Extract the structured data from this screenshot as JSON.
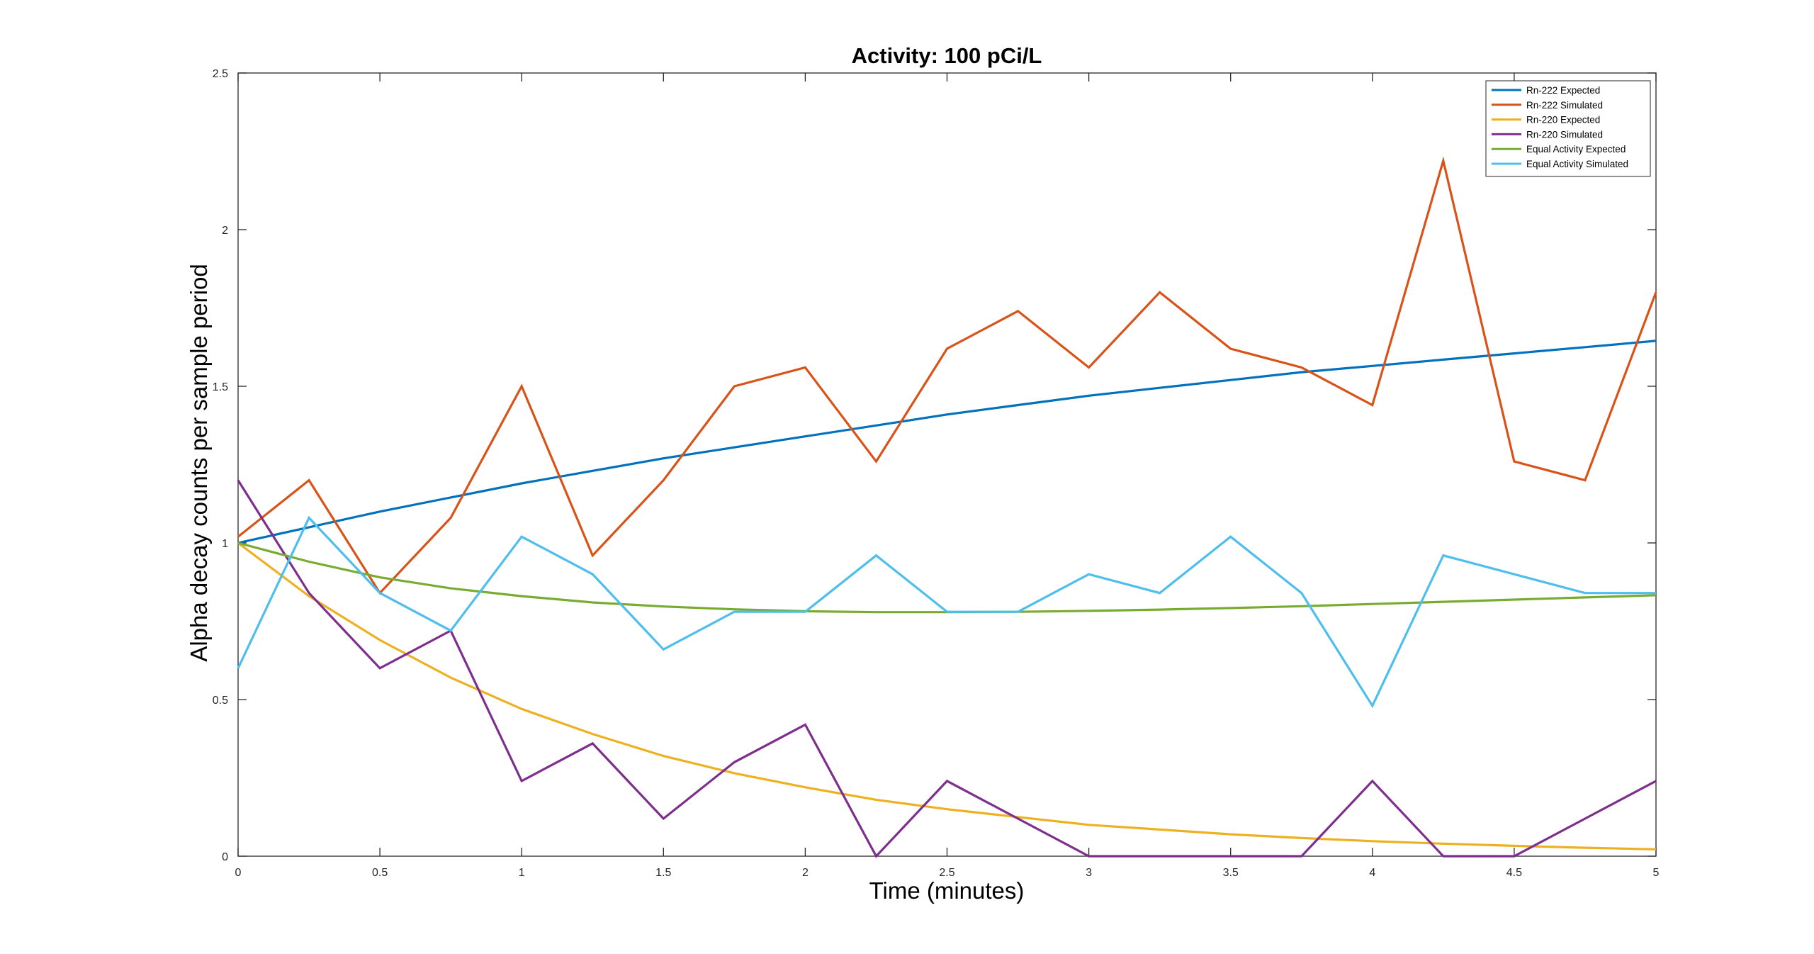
{
  "chart_data": {
    "type": "line",
    "title": "Activity: 100 pCi/L",
    "xlabel": "Time (minutes)",
    "ylabel": "Alpha decay counts per sample period",
    "xlim": [
      0,
      5
    ],
    "ylim": [
      0,
      2.5
    ],
    "xticks": [
      "0",
      "0.5",
      "1",
      "1.5",
      "2",
      "2.5",
      "3",
      "3.5",
      "4",
      "4.5",
      "5"
    ],
    "yticks": [
      "0",
      "0.5",
      "1",
      "1.5",
      "2",
      "2.5"
    ],
    "grid": false,
    "legend_position": "top-right",
    "x": [
      0,
      0.25,
      0.5,
      0.75,
      1,
      1.25,
      1.5,
      1.75,
      2,
      2.25,
      2.5,
      2.75,
      3,
      3.25,
      3.5,
      3.75,
      4,
      4.25,
      4.5,
      4.75,
      5
    ],
    "series": [
      {
        "name": "Rn-222 Expected",
        "color": "#0072BD",
        "values": [
          1.0,
          1.05,
          1.1,
          1.145,
          1.19,
          1.23,
          1.27,
          1.305,
          1.34,
          1.375,
          1.41,
          1.44,
          1.47,
          1.495,
          1.52,
          1.545,
          1.565,
          1.585,
          1.605,
          1.625,
          1.645
        ]
      },
      {
        "name": "Rn-222 Simulated",
        "color": "#D95319",
        "values": [
          1.02,
          1.2,
          0.84,
          1.08,
          1.5,
          0.96,
          1.2,
          1.5,
          1.56,
          1.26,
          1.62,
          1.74,
          1.56,
          1.8,
          1.62,
          1.56,
          1.44,
          2.22,
          1.26,
          1.2,
          1.8
        ]
      },
      {
        "name": "Rn-220 Expected",
        "color": "#EDB120",
        "values": [
          1.0,
          0.83,
          0.69,
          0.57,
          0.47,
          0.39,
          0.32,
          0.265,
          0.22,
          0.18,
          0.15,
          0.125,
          0.1,
          0.085,
          0.07,
          0.058,
          0.048,
          0.04,
          0.033,
          0.027,
          0.022
        ]
      },
      {
        "name": "Rn-220 Simulated",
        "color": "#7E2F8E",
        "values": [
          1.2,
          0.84,
          0.6,
          0.72,
          0.24,
          0.36,
          0.12,
          0.3,
          0.42,
          0.0,
          0.24,
          0.12,
          0.0,
          0.0,
          0.0,
          0.0,
          0.24,
          0.0,
          0.0,
          0.12,
          0.24
        ]
      },
      {
        "name": "Equal Activity Expected",
        "color": "#77AC30",
        "values": [
          1.0,
          0.94,
          0.89,
          0.855,
          0.83,
          0.81,
          0.797,
          0.788,
          0.782,
          0.779,
          0.779,
          0.78,
          0.783,
          0.787,
          0.792,
          0.798,
          0.805,
          0.812,
          0.819,
          0.826,
          0.833
        ]
      },
      {
        "name": "Equal Activity Simulated",
        "color": "#4DBEEE",
        "values": [
          0.6,
          1.08,
          0.84,
          0.72,
          1.02,
          0.9,
          0.66,
          0.78,
          0.78,
          0.96,
          0.78,
          0.78,
          0.9,
          0.84,
          1.02,
          0.84,
          0.48,
          0.96,
          0.9,
          0.84,
          0.84
        ]
      }
    ]
  }
}
